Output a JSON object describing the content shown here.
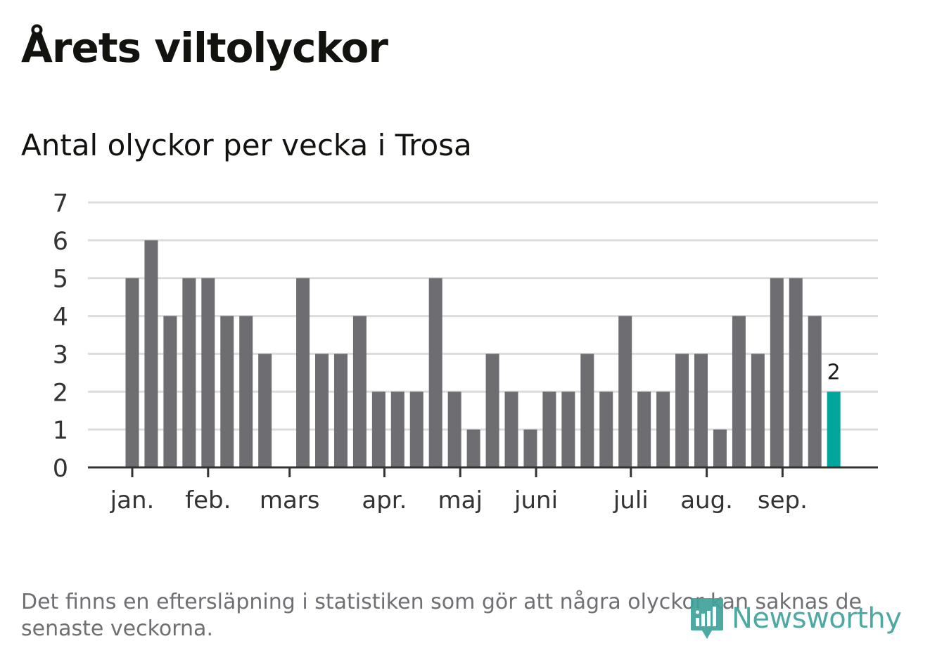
{
  "title": "Årets viltolyckor",
  "subtitle": "Antal olyckor per vecka i Trosa",
  "footnote": "Det finns en eftersläpning i statistiken som gör att några olyckor kan saknas de senaste veckorna.",
  "logo": {
    "text": "Newsworthy",
    "icon": "bar-chart-bubble-icon"
  },
  "colors": {
    "bar": "#6e6d72",
    "highlight": "#00a59c",
    "grid": "#dcdcdc",
    "axis": "#333333"
  },
  "chart_data": {
    "type": "bar",
    "title": "Antal olyckor per vecka i Trosa",
    "xlabel": "",
    "ylabel": "",
    "ylim": [
      0,
      7
    ],
    "yticks": [
      "0",
      "1",
      "2",
      "3",
      "4",
      "5",
      "6",
      "7"
    ],
    "grid": true,
    "values": [
      5,
      6,
      4,
      5,
      5,
      4,
      4,
      3,
      0,
      5,
      3,
      3,
      4,
      2,
      2,
      2,
      5,
      2,
      1,
      3,
      2,
      1,
      2,
      2,
      3,
      2,
      4,
      2,
      2,
      3,
      3,
      1,
      4,
      3,
      5,
      5,
      4,
      2
    ],
    "highlight_index": 37,
    "highlight_label": "2",
    "month_ticks": [
      {
        "label": "jan.",
        "week": 0
      },
      {
        "label": "feb.",
        "week": 4
      },
      {
        "label": "mars",
        "week": 8.3
      },
      {
        "label": "apr.",
        "week": 13.3
      },
      {
        "label": "maj",
        "week": 17.3
      },
      {
        "label": "juni",
        "week": 21.3
      },
      {
        "label": "juli",
        "week": 26.3
      },
      {
        "label": "aug.",
        "week": 30.3
      },
      {
        "label": "sep.",
        "week": 34.3
      }
    ]
  }
}
